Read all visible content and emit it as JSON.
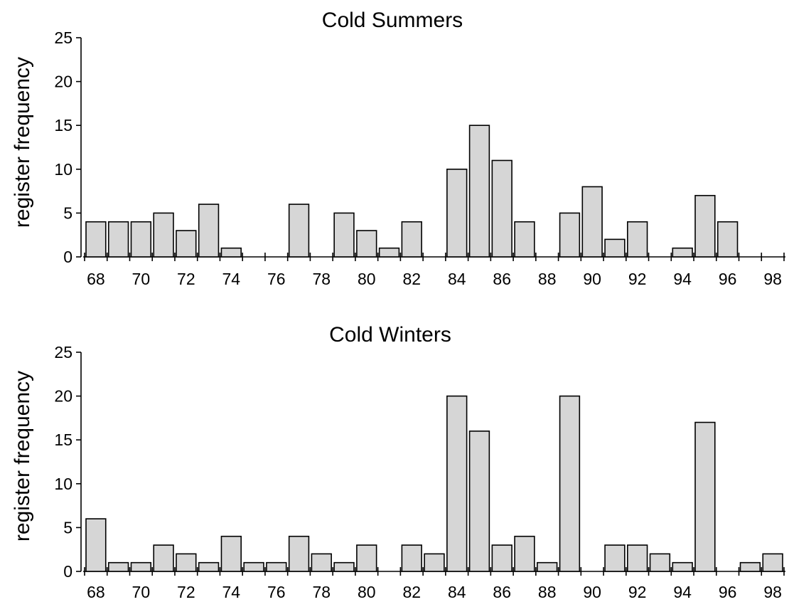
{
  "chart_data": [
    {
      "type": "bar",
      "title": "Cold Summers",
      "ylabel": "register frequency",
      "xlabel": "",
      "ylim": [
        0,
        25
      ],
      "yticks": [
        0,
        5,
        10,
        15,
        20,
        25
      ],
      "xlim": [
        67,
        98
      ],
      "xticks": [
        68,
        70,
        72,
        74,
        76,
        78,
        80,
        82,
        84,
        86,
        88,
        90,
        92,
        94,
        96,
        98
      ],
      "categories": [
        68,
        69,
        70,
        71,
        72,
        73,
        74,
        75,
        76,
        77,
        78,
        79,
        80,
        81,
        82,
        83,
        84,
        85,
        86,
        87,
        88,
        89,
        90,
        91,
        92,
        93,
        94,
        95,
        96,
        97,
        98
      ],
      "values": [
        4,
        4,
        4,
        5,
        3,
        6,
        1,
        0,
        0,
        6,
        0,
        5,
        3,
        1,
        4,
        0,
        10,
        15,
        11,
        4,
        0,
        5,
        8,
        2,
        4,
        0,
        1,
        7,
        4,
        0,
        0
      ],
      "grid": false,
      "bar_color": "#d6d6d6"
    },
    {
      "type": "bar",
      "title": "Cold Winters",
      "ylabel": "register frequency",
      "xlabel": "",
      "ylim": [
        0,
        25
      ],
      "yticks": [
        0,
        5,
        10,
        15,
        20,
        25
      ],
      "xlim": [
        67,
        98
      ],
      "xticks": [
        68,
        70,
        72,
        74,
        76,
        78,
        80,
        82,
        84,
        86,
        88,
        90,
        92,
        94,
        96,
        98
      ],
      "categories": [
        68,
        69,
        70,
        71,
        72,
        73,
        74,
        75,
        76,
        77,
        78,
        79,
        80,
        81,
        82,
        83,
        84,
        85,
        86,
        87,
        88,
        89,
        90,
        91,
        92,
        93,
        94,
        95,
        96,
        97,
        98
      ],
      "values": [
        6,
        1,
        1,
        3,
        2,
        1,
        4,
        1,
        1,
        4,
        2,
        1,
        3,
        0,
        3,
        2,
        20,
        16,
        3,
        4,
        1,
        20,
        0,
        3,
        3,
        2,
        1,
        17,
        0,
        1,
        2
      ],
      "grid": false,
      "bar_color": "#d6d6d6"
    }
  ]
}
